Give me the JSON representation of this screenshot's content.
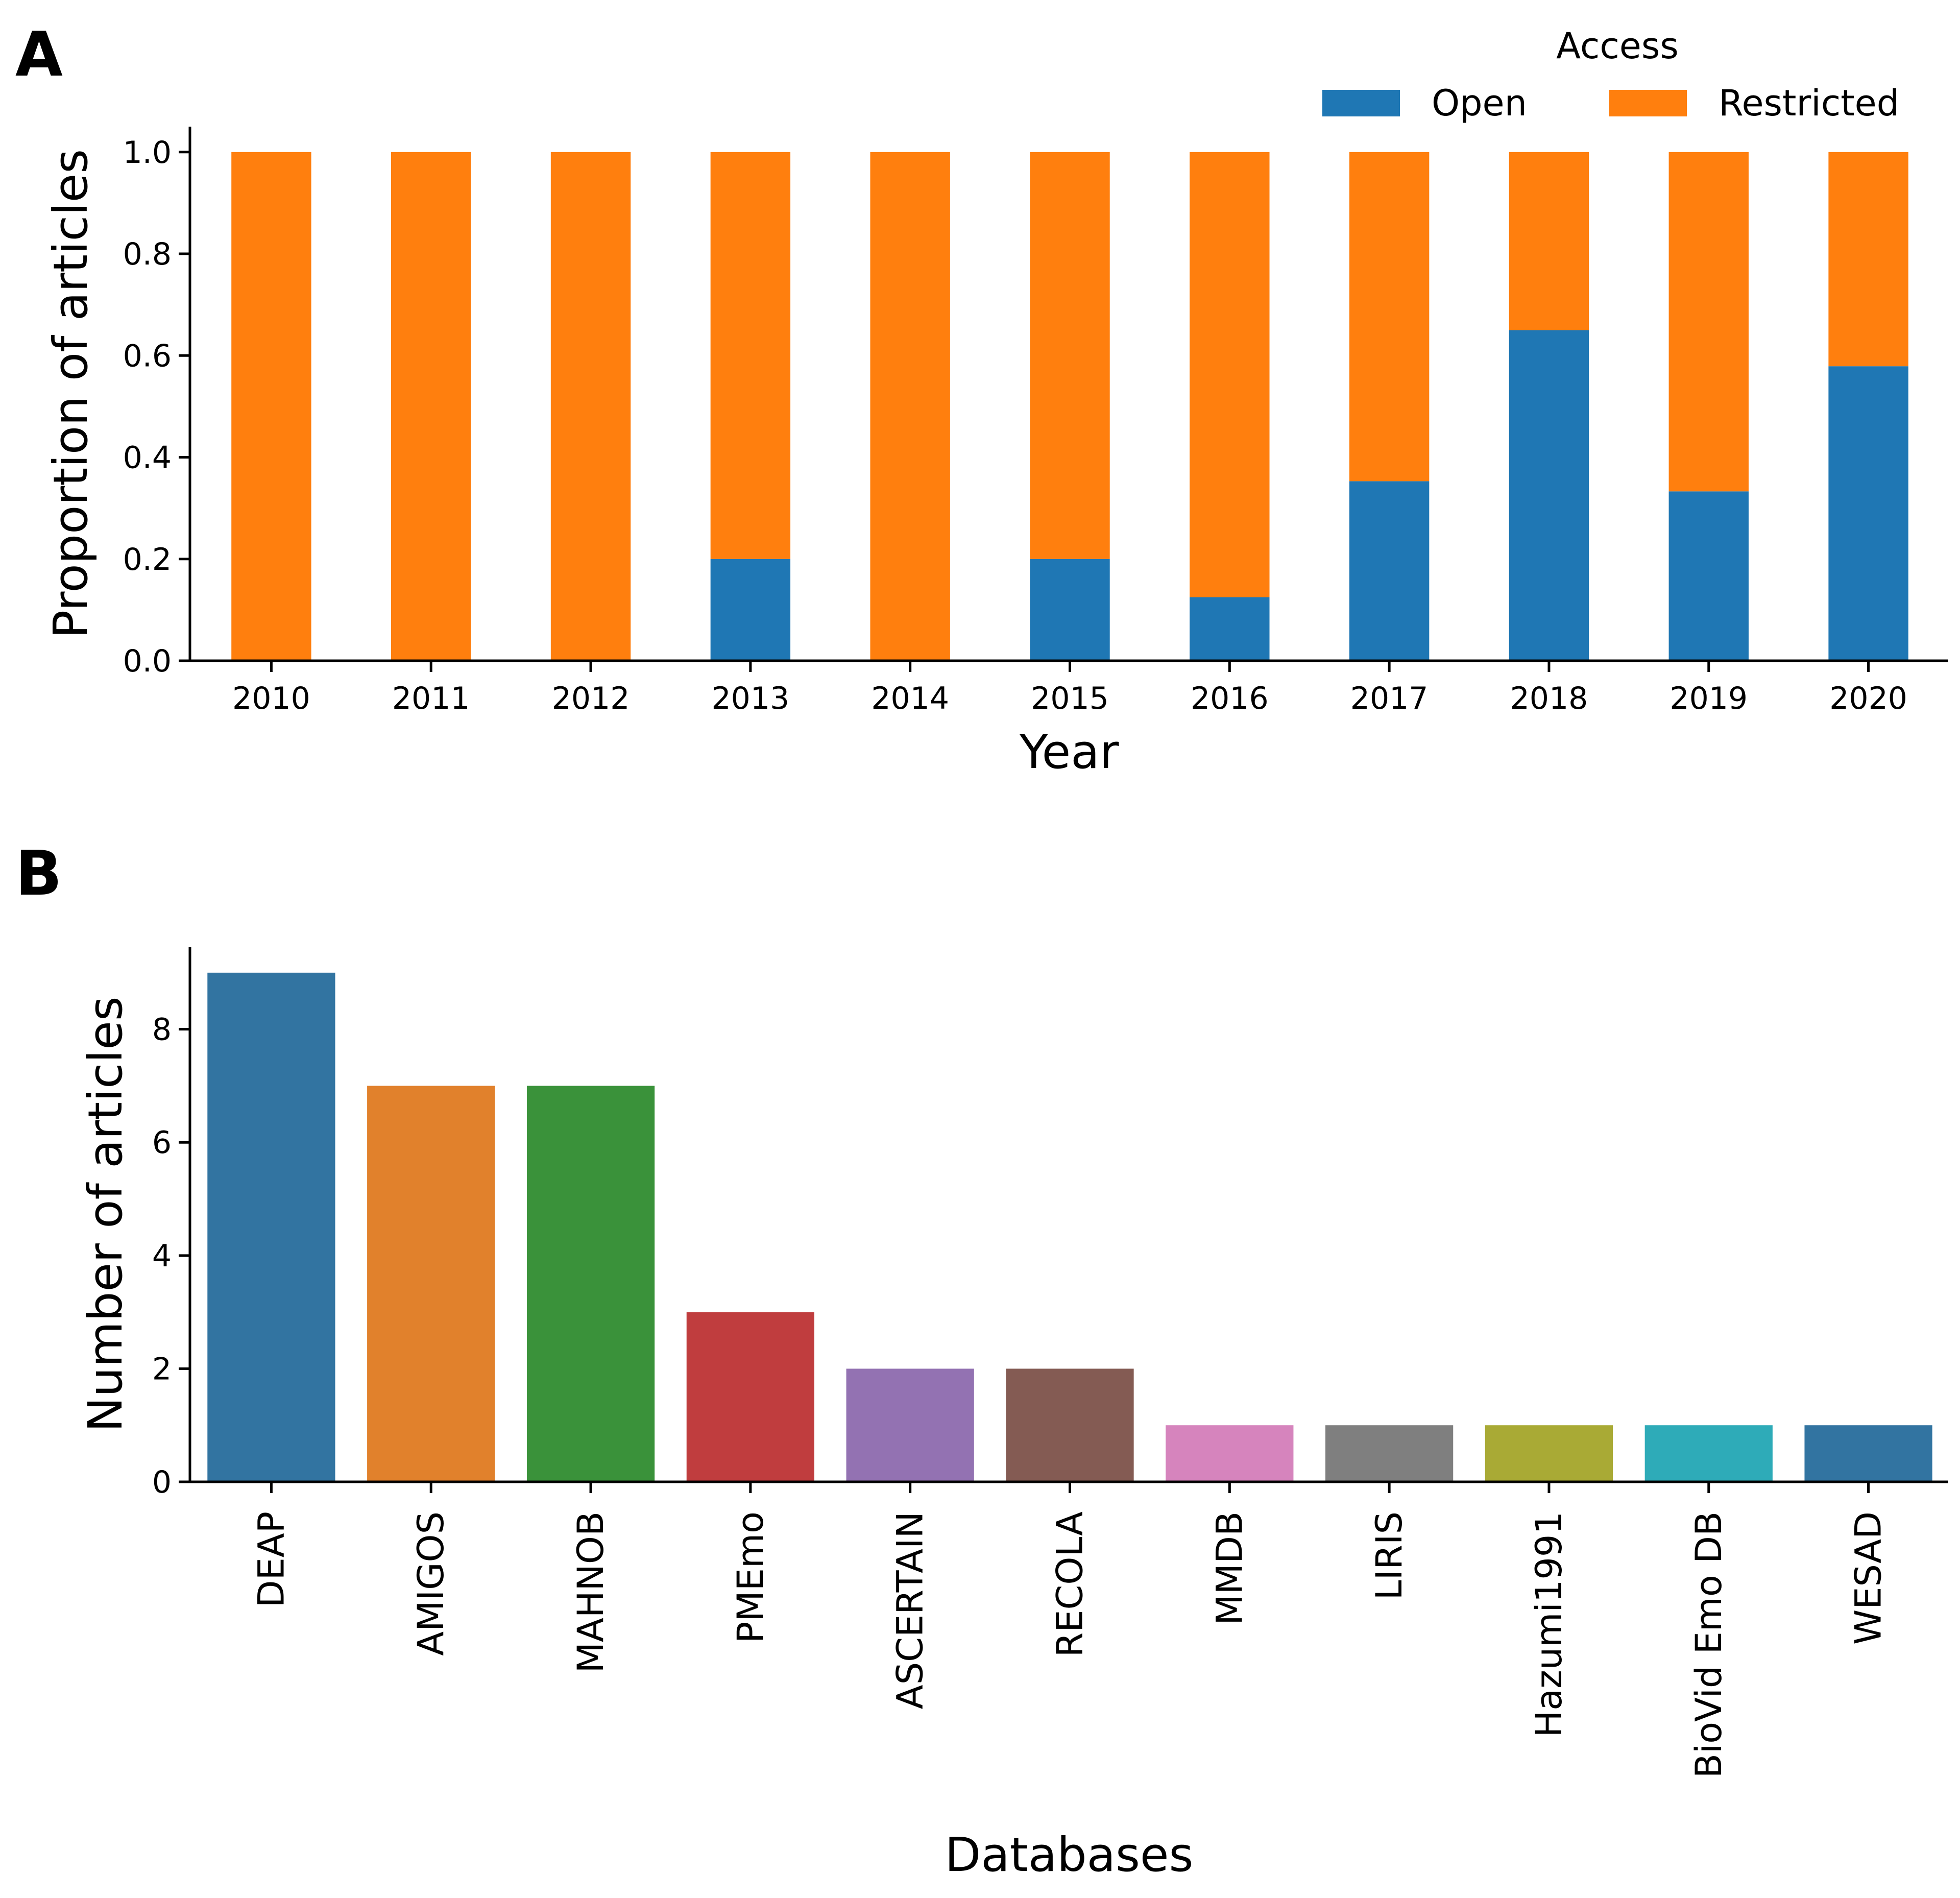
{
  "panels": {
    "a": {
      "letter": "A"
    },
    "b": {
      "letter": "B"
    }
  },
  "chart_data": [
    {
      "type": "bar",
      "stacked": true,
      "categories": [
        "2010",
        "2011",
        "2012",
        "2013",
        "2014",
        "2015",
        "2016",
        "2017",
        "2018",
        "2019",
        "2020"
      ],
      "series": [
        {
          "name": "Open",
          "color": "#1f77b4",
          "values": [
            0,
            0,
            0,
            0.2,
            0,
            0.2,
            0.125,
            0.353,
            0.65,
            0.333,
            0.579
          ]
        },
        {
          "name": "Restricted",
          "color": "#ff7f0e",
          "values": [
            1,
            1,
            1,
            0.8,
            1,
            0.8,
            0.875,
            0.647,
            0.35,
            0.667,
            0.421
          ]
        }
      ],
      "title": "",
      "xlabel": "Year",
      "ylabel": "Proportion of articles",
      "ylim": [
        0,
        1.05
      ],
      "yticks": [
        "0.0",
        "0.2",
        "0.4",
        "0.6",
        "0.8",
        "1.0"
      ],
      "legend": {
        "title": "Access",
        "placement": "top-right"
      },
      "grid": false
    },
    {
      "type": "bar",
      "categories": [
        "DEAP",
        "AMIGOS",
        "MAHNOB",
        "PMEmo",
        "ASCERTAIN",
        "RECOLA",
        "MMDB",
        "LIRIS",
        "Hazumi1991",
        "BioVid Emo DB",
        "WESAD"
      ],
      "values": [
        9,
        7,
        7,
        3,
        2,
        2,
        1,
        1,
        1,
        1,
        1
      ],
      "colors": [
        "#3274a1",
        "#e1812c",
        "#3a923a",
        "#c03d3e",
        "#9372b2",
        "#845b53",
        "#d684bd",
        "#7f7f7f",
        "#a9aa35",
        "#2eabb8",
        "#3274a1"
      ],
      "title": "",
      "xlabel": "Databases",
      "ylabel": "Number of articles",
      "ylim": [
        0,
        9.45
      ],
      "yticks": [
        "0",
        "2",
        "4",
        "6",
        "8"
      ],
      "grid": false
    }
  ]
}
